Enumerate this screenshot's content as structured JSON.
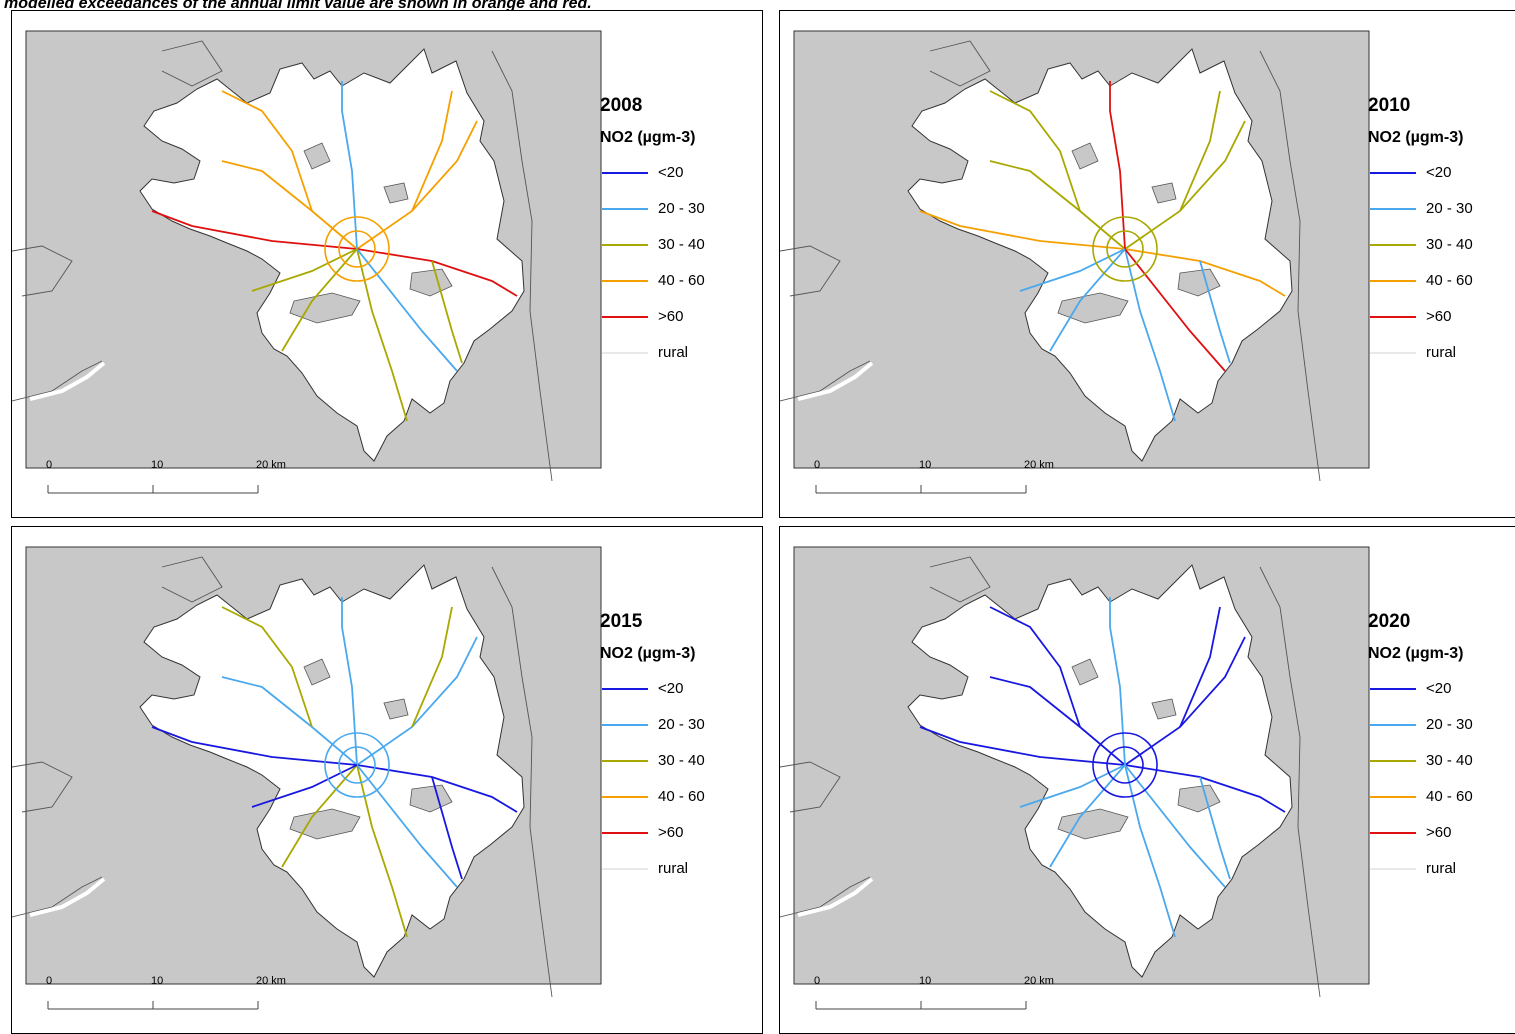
{
  "caption": "modelled exceedances of the annual limit value are shown in orange and red.",
  "legend_title": "NO2 (µgm-3)",
  "legend_classes": [
    {
      "label": "<20",
      "color": "#1818e0"
    },
    {
      "label": "20 - 30",
      "color": "#4aa8ee"
    },
    {
      "label": "30 - 40",
      "color": "#a8a800"
    },
    {
      "label": "40 - 60",
      "color": "#f5a000"
    },
    {
      "label": ">60",
      "color": "#e01010"
    },
    {
      "label": "rural",
      "color": "#e8e8e8"
    }
  ],
  "scale_bar": {
    "labels": [
      "0",
      "10",
      "20 km"
    ]
  },
  "panels": [
    {
      "year": "2008",
      "road_colors": [
        "#f5a000",
        "#a8a800",
        "#e01010",
        "#4aa8ee"
      ]
    },
    {
      "year": "2010",
      "road_colors": [
        "#a8a800",
        "#4aa8ee",
        "#f5a000",
        "#e01010"
      ]
    },
    {
      "year": "2015",
      "road_colors": [
        "#4aa8ee",
        "#a8a800",
        "#1818e0"
      ]
    },
    {
      "year": "2020",
      "road_colors": [
        "#1818e0",
        "#4aa8ee"
      ]
    }
  ],
  "map_colors": {
    "background": "#c8c8c8",
    "urban": "#ffffff",
    "boundary": "#555555"
  }
}
